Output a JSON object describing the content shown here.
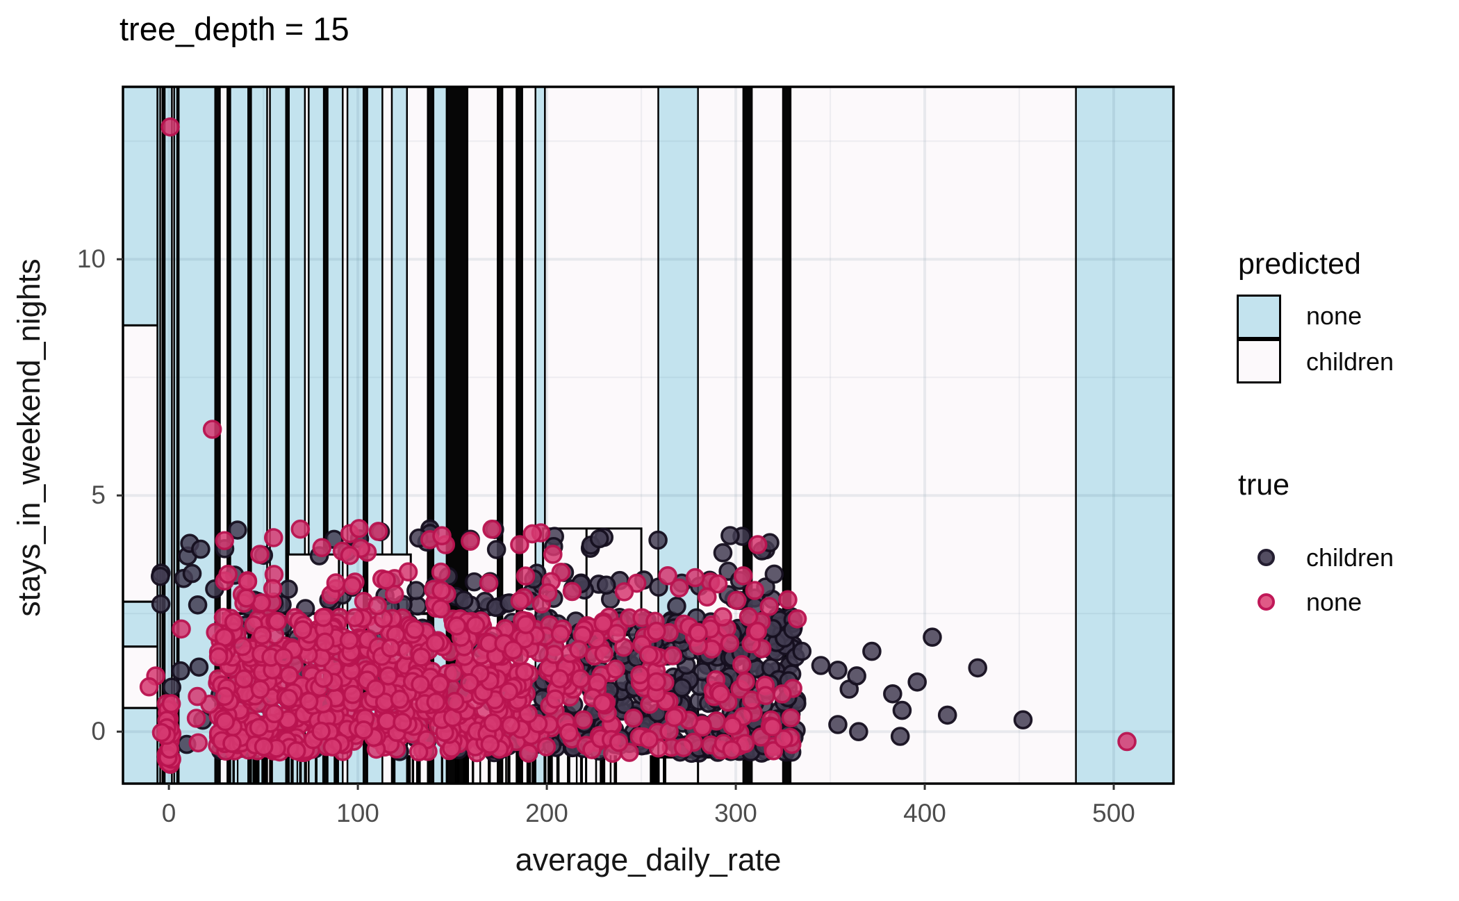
{
  "title": "tree_depth = 15",
  "chart_data": {
    "type": "scatter",
    "title": "tree_depth = 15",
    "xlabel": "average_daily_rate",
    "ylabel": "stays_in_weekend_nights",
    "xlim": [
      -24.3,
      531.6
    ],
    "ylim": [
      -1.1,
      13.65
    ],
    "x_ticks": [
      0,
      100,
      200,
      300,
      400,
      500
    ],
    "y_ticks": [
      0,
      5,
      10
    ],
    "x_tick_labels": [
      "0",
      "100",
      "200",
      "300",
      "400",
      "500"
    ],
    "y_tick_labels": [
      "0",
      "5",
      "10"
    ],
    "minor_x": [
      50,
      150,
      250,
      350,
      450
    ],
    "minor_y": [
      2.5,
      7.5,
      12.5
    ],
    "grid": "on",
    "legend_position": "right",
    "colors": {
      "region_none": "#C3E3EE",
      "region_children": "#FCF9FB",
      "boundary_black": "#060606",
      "region_border": "#000000",
      "point_children_fill": "#433D52",
      "point_children_stroke": "#150F1F",
      "point_none_fill": "#D63A71",
      "point_none_stroke": "#B8134F",
      "grid_line": "#8fa6b0"
    },
    "legend_predicted": {
      "title": "predicted",
      "items": [
        {
          "label": "none",
          "swatch": "#C3E3EE"
        },
        {
          "label": "children",
          "swatch": "#FCF9FB"
        }
      ]
    },
    "legend_true": {
      "title": "true",
      "items": [
        {
          "label": "children",
          "dot_fill": "#544E62",
          "dot_stroke": "#241E31"
        },
        {
          "label": "none",
          "dot_fill": "#E05A86",
          "dot_stroke": "#C01858"
        }
      ]
    },
    "regions": {
      "left_column": {
        "x": [
          -24.3,
          -6
        ],
        "rows": [
          {
            "y": [
              8.6,
              13.65
            ],
            "c": "b"
          },
          {
            "y": [
              2.75,
              8.6
            ],
            "c": "w"
          },
          {
            "y": [
              1.8,
              2.75
            ],
            "c": "b"
          },
          {
            "y": [
              0.5,
              1.8
            ],
            "c": "w"
          },
          {
            "y": [
              -1.1,
              0.5
            ],
            "c": "b"
          }
        ]
      },
      "stripes": [
        [
          -6,
          -4.6,
          "b"
        ],
        [
          -4.6,
          -3.4,
          "w"
        ],
        [
          -3.4,
          -2.2,
          "k"
        ],
        [
          -2.2,
          1.6,
          "b"
        ],
        [
          1.6,
          2.8,
          "w"
        ],
        [
          2.8,
          4.4,
          "b"
        ],
        [
          4.4,
          5.2,
          "k"
        ],
        [
          5.2,
          24.5,
          "b"
        ],
        [
          24.5,
          27,
          "k"
        ],
        [
          27,
          31,
          "w"
        ],
        [
          31,
          32.5,
          "k"
        ],
        [
          32.5,
          42,
          "b"
        ],
        [
          42,
          43.5,
          "k"
        ],
        [
          43.5,
          52,
          "b"
        ],
        [
          52,
          53.5,
          "w"
        ],
        [
          53.5,
          62,
          "b"
        ],
        [
          62,
          63.5,
          "k"
        ],
        [
          63.5,
          72,
          "b"
        ],
        [
          72,
          74,
          "w"
        ],
        [
          74,
          82,
          "b"
        ],
        [
          82,
          84,
          "k"
        ],
        [
          84,
          92,
          "b"
        ],
        [
          92,
          94.5,
          "w"
        ],
        [
          94.5,
          103,
          "b"
        ],
        [
          103,
          105,
          "k"
        ],
        [
          105,
          113,
          "b"
        ],
        [
          113,
          118,
          "w"
        ],
        [
          118,
          126,
          "b"
        ],
        [
          126,
          137,
          "w"
        ],
        [
          137,
          140,
          "k"
        ],
        [
          140,
          147,
          "b"
        ],
        [
          147,
          158,
          "k"
        ],
        [
          158,
          174,
          "w"
        ],
        [
          174,
          176.5,
          "k"
        ],
        [
          176.5,
          184,
          "w"
        ],
        [
          184,
          187,
          "k"
        ],
        [
          187,
          194,
          "w"
        ],
        [
          194,
          199,
          "b"
        ],
        [
          199,
          259,
          "w"
        ],
        [
          259,
          280,
          "b"
        ],
        [
          280,
          304,
          "w"
        ],
        [
          304,
          308.5,
          "k"
        ],
        [
          308.5,
          325,
          "w"
        ],
        [
          325,
          329,
          "k"
        ],
        [
          329,
          480,
          "w"
        ],
        [
          480,
          531.6,
          "b"
        ]
      ],
      "overlays": [
        {
          "x": [
            63,
            90
          ],
          "y": [
            1.8,
            3.75
          ],
          "c": "w"
        },
        {
          "x": [
            105,
            128
          ],
          "y": [
            2.8,
            3.75
          ],
          "c": "w"
        },
        {
          "x": [
            198,
            250
          ],
          "y": [
            2.05,
            4.3
          ],
          "c": "w"
        },
        {
          "x": [
            259,
            280
          ],
          "y": [
            -1.1,
            1.95
          ],
          "c": "w"
        }
      ],
      "h_lines": [
        {
          "y": 2.5,
          "x": [
            28,
            158
          ]
        },
        {
          "y": 2.05,
          "x": [
            158,
            305
          ]
        },
        {
          "y": -0.54,
          "x": [
            259,
            304
          ]
        }
      ],
      "v_lines": [
        {
          "x": 221,
          "y": [
            2.05,
            4.3
          ]
        }
      ],
      "rug": {
        "y": [
          -1.1,
          -0.5
        ],
        "groups": [
          {
            "x": [
              34,
              98
            ],
            "n": 22
          },
          {
            "x": [
              118,
              237
            ],
            "n": 44
          },
          {
            "x": [
              252,
              270
            ],
            "n": 7
          }
        ]
      }
    },
    "points": {
      "seed": 42,
      "radius": 12,
      "stroke_width": 3.6,
      "x_jitter": 1.5,
      "bands": [
        {
          "y": 0,
          "n": 520,
          "x": [
            24,
            332
          ],
          "skew": 1.0,
          "jitter": 0.92
        },
        {
          "y": 1,
          "n": 430,
          "x": [
            24,
            332
          ],
          "skew": 1.05,
          "jitter": 0.9
        },
        {
          "y": 2,
          "n": 400,
          "x": [
            24,
            332
          ],
          "skew": 1.1,
          "jitter": 0.88
        },
        {
          "y": 3,
          "n": 115,
          "x": [
            24,
            330
          ],
          "skew": 1.1,
          "jitter": 0.8
        },
        {
          "y": 4,
          "n": 48,
          "x": [
            28,
            322
          ],
          "skew": 1.25,
          "jitter": 0.6
        }
      ],
      "pink_prob": {
        "low_bands": [
          [
            190,
            0.82
          ],
          [
            240,
            0.5
          ],
          [
            280,
            0.33
          ],
          [
            9999,
            0.2
          ]
        ],
        "band3": [
          [
            190,
            0.55
          ],
          [
            9999,
            0.3
          ]
        ],
        "band4": [
          [
            160,
            0.5
          ],
          [
            9999,
            0.12
          ]
        ]
      },
      "zero_column": {
        "n": 32,
        "x": [
          -1.6,
          1.6
        ],
        "y": [
          -0.75,
          0.6
        ],
        "class": "none"
      },
      "left_scatter": {
        "n": 14,
        "x": [
          -14,
          24
        ],
        "y": [
          -0.3,
          2.3
        ],
        "pink_prob": 0.6
      },
      "upper_left_dark": {
        "n": 9,
        "x": [
          -9,
          24
        ],
        "y": [
          2.5,
          4.1
        ],
        "class": "children"
      },
      "tail_children": [
        [
          335,
          1.7
        ],
        [
          345,
          1.4
        ],
        [
          354,
          1.3
        ],
        [
          354,
          0.15
        ],
        [
          360,
          0.9
        ],
        [
          364,
          1.18
        ],
        [
          365,
          0.0
        ],
        [
          372,
          1.7
        ],
        [
          383,
          0.8
        ],
        [
          387,
          -0.1
        ],
        [
          388,
          0.45
        ],
        [
          396,
          1.05
        ],
        [
          404,
          2.0
        ],
        [
          412,
          0.35
        ],
        [
          428,
          1.35
        ],
        [
          452,
          0.25
        ],
        [
          297,
          4.15
        ],
        [
          318,
          4.0
        ],
        [
          302,
          3.2
        ],
        [
          310,
          2.65
        ],
        [
          296,
          2.9
        ]
      ],
      "outliers_none": [
        [
          0.7,
          12.8
        ],
        [
          23,
          6.4
        ],
        [
          264,
          3.3
        ],
        [
          507,
          -0.21
        ]
      ]
    }
  }
}
